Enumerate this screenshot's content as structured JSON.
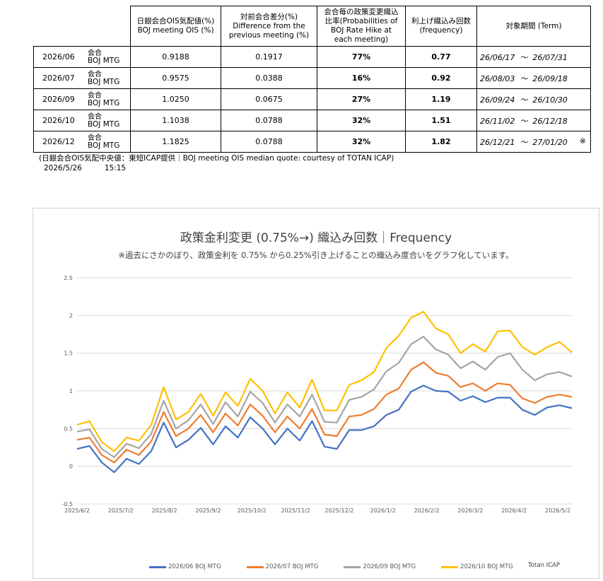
{
  "table": {
    "headers": {
      "ois": [
        "日銀会合OIS気配値(%)",
        "BOJ meeting OIS (%)"
      ],
      "diff": [
        "対前会合差分(%)",
        "Difference from the",
        "previous meeting (%)"
      ],
      "prob": [
        "会合毎の政策変更織込",
        "比率(Probabilities of",
        "BOJ Rate Hike at",
        "each meeting)"
      ],
      "freq": [
        "利上げ織込み回数",
        "(frequency)"
      ],
      "term": [
        "対象期間 (Term)"
      ]
    },
    "kaigo": "会合",
    "boj_mtg": "BOJ MTG",
    "tilde": "～",
    "rows": [
      {
        "month": "2026/06",
        "ois": "0.9188",
        "diff": "0.1917",
        "prob": "77%",
        "freq": "0.77",
        "term_start": "26/06/17",
        "term_end": "26/07/31",
        "mark": ""
      },
      {
        "month": "2026/07",
        "ois": "0.9575",
        "diff": "0.0388",
        "prob": "16%",
        "freq": "0.92",
        "term_start": "26/08/03",
        "term_end": "26/09/18",
        "mark": ""
      },
      {
        "month": "2026/09",
        "ois": "1.0250",
        "diff": "0.0675",
        "prob": "27%",
        "freq": "1.19",
        "term_start": "26/09/24",
        "term_end": "26/10/30",
        "mark": ""
      },
      {
        "month": "2026/10",
        "ois": "1.1038",
        "diff": "0.0788",
        "prob": "32%",
        "freq": "1.51",
        "term_start": "26/11/02",
        "term_end": "26/12/18",
        "mark": ""
      },
      {
        "month": "2026/12",
        "ois": "1.1825",
        "diff": "0.0788",
        "prob": "32%",
        "freq": "1.82",
        "term_start": "26/12/21",
        "term_end": "27/01/20",
        "mark": "※"
      }
    ],
    "note": "(日銀会合OIS気配中央値：東短ICAP提供｜BOJ meeting OIS median quote: courtesy of TOTAN ICAP)",
    "date": "2026/5/26",
    "time": "15:15"
  },
  "chart_data": {
    "type": "line",
    "title": "政策金利変更 (0.75%→) 織込み回数｜Frequency",
    "subtitle": "※過去にさかのぼり、政策金利を 0.75% から0.25%引き上げることの織込み度合いをグラフ化しています。",
    "xlabel": "",
    "ylabel": "",
    "ylim": [
      -0.5,
      2.5
    ],
    "yticks": [
      "2.5",
      "2",
      "1.5",
      "1",
      "0.5",
      "0",
      "-0.5"
    ],
    "xticks": [
      "2025/6/2",
      "2025/7/2",
      "2025/8/2",
      "2025/9/2",
      "2025/10/2",
      "2025/11/2",
      "2025/12/2",
      "2026/1/2",
      "2026/2/2",
      "2026/3/2",
      "2026/4/2",
      "2026/5/2"
    ],
    "grid": true,
    "legend_position": "bottom",
    "source": "Totan ICAP",
    "series": [
      {
        "name": "2026/06 BOJ MTG",
        "color": "#4472C4",
        "values": [
          0.23,
          0.27,
          0.05,
          -0.08,
          0.1,
          0.03,
          0.2,
          0.58,
          0.25,
          0.35,
          0.51,
          0.29,
          0.53,
          0.38,
          0.65,
          0.5,
          0.29,
          0.5,
          0.34,
          0.6,
          0.26,
          0.23,
          0.48,
          0.48,
          0.53,
          0.68,
          0.75,
          0.99,
          1.07,
          1.0,
          0.99,
          0.87,
          0.93,
          0.85,
          0.91,
          0.91,
          0.75,
          0.68,
          0.78,
          0.81,
          0.77
        ]
      },
      {
        "name": "2026/07 BOJ MTG",
        "color": "#ED7D31",
        "values": [
          0.35,
          0.38,
          0.15,
          0.05,
          0.22,
          0.15,
          0.33,
          0.72,
          0.4,
          0.5,
          0.68,
          0.45,
          0.7,
          0.54,
          0.82,
          0.67,
          0.45,
          0.66,
          0.5,
          0.76,
          0.42,
          0.4,
          0.66,
          0.68,
          0.76,
          0.95,
          1.03,
          1.28,
          1.38,
          1.24,
          1.2,
          1.05,
          1.1,
          1.0,
          1.1,
          1.08,
          0.9,
          0.84,
          0.92,
          0.95,
          0.92
        ]
      },
      {
        "name": "2026/09 BOJ MTG",
        "color": "#A5A5A5",
        "values": [
          0.46,
          0.49,
          0.23,
          0.12,
          0.3,
          0.24,
          0.43,
          0.87,
          0.5,
          0.61,
          0.82,
          0.56,
          0.85,
          0.66,
          0.99,
          0.84,
          0.58,
          0.82,
          0.66,
          0.95,
          0.59,
          0.58,
          0.88,
          0.92,
          1.02,
          1.26,
          1.37,
          1.62,
          1.72,
          1.55,
          1.48,
          1.3,
          1.39,
          1.28,
          1.45,
          1.5,
          1.28,
          1.14,
          1.22,
          1.25,
          1.19
        ]
      },
      {
        "name": "2026/10 BOJ MTG",
        "color": "#FFC000",
        "values": [
          0.55,
          0.6,
          0.32,
          0.2,
          0.38,
          0.34,
          0.55,
          1.05,
          0.62,
          0.72,
          0.96,
          0.67,
          0.98,
          0.8,
          1.16,
          1.0,
          0.7,
          0.98,
          0.78,
          1.15,
          0.74,
          0.74,
          1.08,
          1.14,
          1.25,
          1.57,
          1.73,
          1.97,
          2.05,
          1.83,
          1.75,
          1.5,
          1.62,
          1.52,
          1.79,
          1.8,
          1.58,
          1.48,
          1.58,
          1.65,
          1.51
        ]
      }
    ]
  }
}
